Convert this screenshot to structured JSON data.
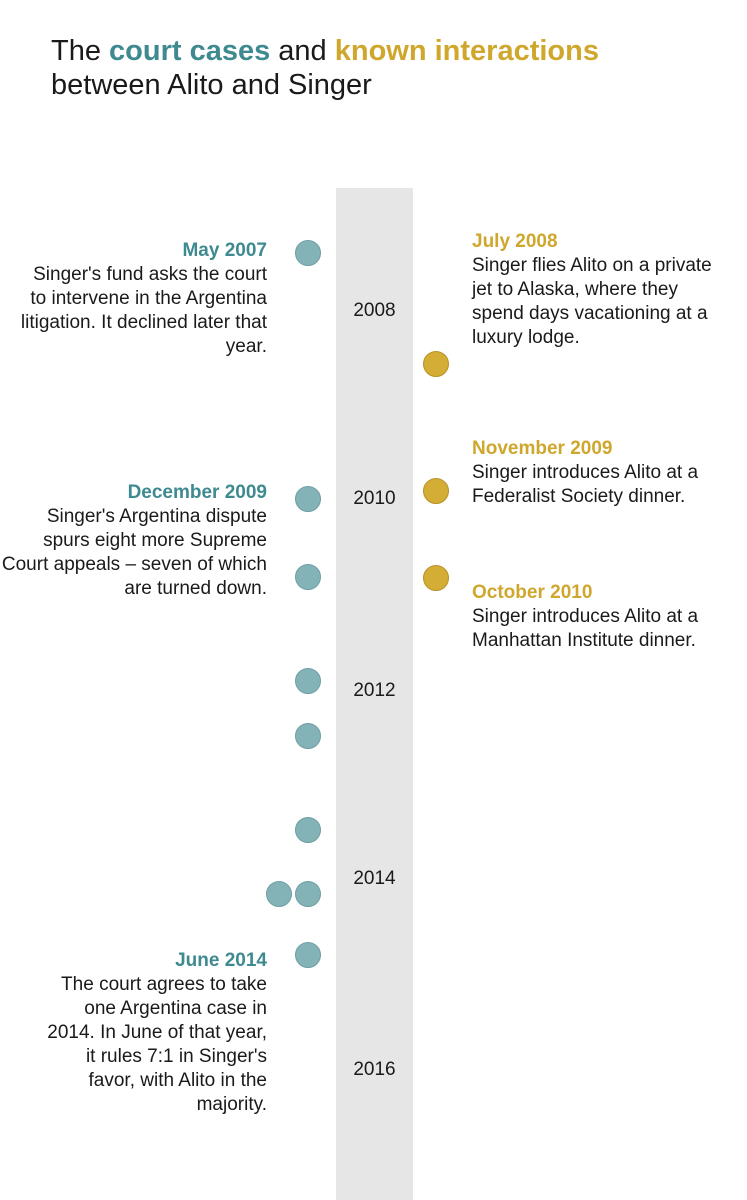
{
  "title": {
    "part1": "The ",
    "court_cases": "court cases",
    "part2": " and ",
    "known_interactions": "known interactions",
    "part3": "between Alito and Singer"
  },
  "years": [
    "2008",
    "2010",
    "2012",
    "2014",
    "2016"
  ],
  "court_case_notes": [
    {
      "date": "May 2007",
      "text": "Singer's fund asks the court to intervene in the Argentina litigation. It declined later that year."
    },
    {
      "date": "December 2009",
      "text": "Singer's Argentina dispute spurs eight more Supreme Court appeals – seven of which are turned down."
    },
    {
      "date": "June 2014",
      "text": "The court agrees to take one Argentina case in 2014. In June of that year, it rules 7:1 in Singer's favor, with Alito in the majority."
    }
  ],
  "interaction_notes": [
    {
      "date": "July 2008",
      "text": "Singer flies Alito on a private jet to Alaska, where they spend days vacationing at a luxury lodge."
    },
    {
      "date": "November 2009",
      "text": "Singer introduces Alito at a Federalist Society dinner."
    },
    {
      "date": "October 2010",
      "text": "Singer introduces Alito at a Manhattan Institute dinner."
    }
  ],
  "colors": {
    "court_cases": "#3e8a90",
    "known_interactions": "#cfa72d",
    "track": "#e6e6e6"
  }
}
